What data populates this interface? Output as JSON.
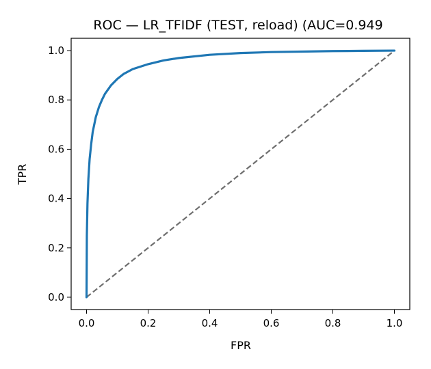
{
  "chart_data": {
    "type": "line",
    "title": "ROC — LR_TFIDF (TEST, reload) (AUC=0.949",
    "xlabel": "FPR",
    "ylabel": "TPR",
    "xlim": [
      -0.05,
      1.05
    ],
    "ylim": [
      -0.05,
      1.05
    ],
    "xticks": [
      0.0,
      0.2,
      0.4,
      0.6,
      0.8,
      1.0
    ],
    "xtick_labels": [
      "0.0",
      "0.2",
      "0.4",
      "0.6",
      "0.8",
      "1.0"
    ],
    "yticks": [
      0.0,
      0.2,
      0.4,
      0.6,
      0.8,
      1.0
    ],
    "ytick_labels": [
      "0.0",
      "0.2",
      "0.4",
      "0.6",
      "0.8",
      "1.0"
    ],
    "grid": false,
    "legend": "none",
    "series": [
      {
        "style": "solid",
        "color": "#1f77b4",
        "x": [
          0.0,
          0.001,
          0.003,
          0.006,
          0.01,
          0.015,
          0.02,
          0.03,
          0.04,
          0.05,
          0.06,
          0.08,
          0.1,
          0.12,
          0.15,
          0.2,
          0.25,
          0.3,
          0.4,
          0.5,
          0.6,
          0.7,
          0.8,
          0.9,
          1.0
        ],
        "y": [
          0.0,
          0.25,
          0.38,
          0.48,
          0.56,
          0.62,
          0.67,
          0.73,
          0.77,
          0.8,
          0.825,
          0.86,
          0.885,
          0.905,
          0.925,
          0.945,
          0.96,
          0.97,
          0.983,
          0.99,
          0.994,
          0.996,
          0.998,
          0.999,
          1.0
        ]
      },
      {
        "style": "dashed",
        "color": "#6e6e6e",
        "x": [
          0.0,
          1.0
        ],
        "y": [
          0.0,
          1.0
        ]
      }
    ]
  }
}
